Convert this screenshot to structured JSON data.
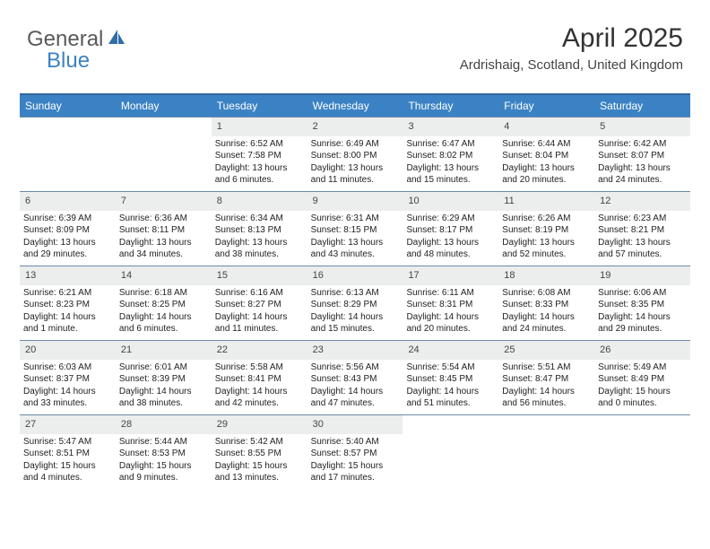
{
  "logo": {
    "text1": "General",
    "text2": "Blue"
  },
  "header": {
    "title": "April 2025",
    "subtitle": "Ardrishaig, Scotland, United Kingdom"
  },
  "colors": {
    "header_bg": "#3b82c4",
    "header_border": "#33689b",
    "row_divider": "#6a8aa8",
    "date_bg": "#eceded"
  },
  "day_names": [
    "Sunday",
    "Monday",
    "Tuesday",
    "Wednesday",
    "Thursday",
    "Friday",
    "Saturday"
  ],
  "weeks": [
    [
      {
        "date": "",
        "lines": []
      },
      {
        "date": "",
        "lines": []
      },
      {
        "date": "1",
        "lines": [
          "Sunrise: 6:52 AM",
          "Sunset: 7:58 PM",
          "Daylight: 13 hours",
          "and 6 minutes."
        ]
      },
      {
        "date": "2",
        "lines": [
          "Sunrise: 6:49 AM",
          "Sunset: 8:00 PM",
          "Daylight: 13 hours",
          "and 11 minutes."
        ]
      },
      {
        "date": "3",
        "lines": [
          "Sunrise: 6:47 AM",
          "Sunset: 8:02 PM",
          "Daylight: 13 hours",
          "and 15 minutes."
        ]
      },
      {
        "date": "4",
        "lines": [
          "Sunrise: 6:44 AM",
          "Sunset: 8:04 PM",
          "Daylight: 13 hours",
          "and 20 minutes."
        ]
      },
      {
        "date": "5",
        "lines": [
          "Sunrise: 6:42 AM",
          "Sunset: 8:07 PM",
          "Daylight: 13 hours",
          "and 24 minutes."
        ]
      }
    ],
    [
      {
        "date": "6",
        "lines": [
          "Sunrise: 6:39 AM",
          "Sunset: 8:09 PM",
          "Daylight: 13 hours",
          "and 29 minutes."
        ]
      },
      {
        "date": "7",
        "lines": [
          "Sunrise: 6:36 AM",
          "Sunset: 8:11 PM",
          "Daylight: 13 hours",
          "and 34 minutes."
        ]
      },
      {
        "date": "8",
        "lines": [
          "Sunrise: 6:34 AM",
          "Sunset: 8:13 PM",
          "Daylight: 13 hours",
          "and 38 minutes."
        ]
      },
      {
        "date": "9",
        "lines": [
          "Sunrise: 6:31 AM",
          "Sunset: 8:15 PM",
          "Daylight: 13 hours",
          "and 43 minutes."
        ]
      },
      {
        "date": "10",
        "lines": [
          "Sunrise: 6:29 AM",
          "Sunset: 8:17 PM",
          "Daylight: 13 hours",
          "and 48 minutes."
        ]
      },
      {
        "date": "11",
        "lines": [
          "Sunrise: 6:26 AM",
          "Sunset: 8:19 PM",
          "Daylight: 13 hours",
          "and 52 minutes."
        ]
      },
      {
        "date": "12",
        "lines": [
          "Sunrise: 6:23 AM",
          "Sunset: 8:21 PM",
          "Daylight: 13 hours",
          "and 57 minutes."
        ]
      }
    ],
    [
      {
        "date": "13",
        "lines": [
          "Sunrise: 6:21 AM",
          "Sunset: 8:23 PM",
          "Daylight: 14 hours",
          "and 1 minute."
        ]
      },
      {
        "date": "14",
        "lines": [
          "Sunrise: 6:18 AM",
          "Sunset: 8:25 PM",
          "Daylight: 14 hours",
          "and 6 minutes."
        ]
      },
      {
        "date": "15",
        "lines": [
          "Sunrise: 6:16 AM",
          "Sunset: 8:27 PM",
          "Daylight: 14 hours",
          "and 11 minutes."
        ]
      },
      {
        "date": "16",
        "lines": [
          "Sunrise: 6:13 AM",
          "Sunset: 8:29 PM",
          "Daylight: 14 hours",
          "and 15 minutes."
        ]
      },
      {
        "date": "17",
        "lines": [
          "Sunrise: 6:11 AM",
          "Sunset: 8:31 PM",
          "Daylight: 14 hours",
          "and 20 minutes."
        ]
      },
      {
        "date": "18",
        "lines": [
          "Sunrise: 6:08 AM",
          "Sunset: 8:33 PM",
          "Daylight: 14 hours",
          "and 24 minutes."
        ]
      },
      {
        "date": "19",
        "lines": [
          "Sunrise: 6:06 AM",
          "Sunset: 8:35 PM",
          "Daylight: 14 hours",
          "and 29 minutes."
        ]
      }
    ],
    [
      {
        "date": "20",
        "lines": [
          "Sunrise: 6:03 AM",
          "Sunset: 8:37 PM",
          "Daylight: 14 hours",
          "and 33 minutes."
        ]
      },
      {
        "date": "21",
        "lines": [
          "Sunrise: 6:01 AM",
          "Sunset: 8:39 PM",
          "Daylight: 14 hours",
          "and 38 minutes."
        ]
      },
      {
        "date": "22",
        "lines": [
          "Sunrise: 5:58 AM",
          "Sunset: 8:41 PM",
          "Daylight: 14 hours",
          "and 42 minutes."
        ]
      },
      {
        "date": "23",
        "lines": [
          "Sunrise: 5:56 AM",
          "Sunset: 8:43 PM",
          "Daylight: 14 hours",
          "and 47 minutes."
        ]
      },
      {
        "date": "24",
        "lines": [
          "Sunrise: 5:54 AM",
          "Sunset: 8:45 PM",
          "Daylight: 14 hours",
          "and 51 minutes."
        ]
      },
      {
        "date": "25",
        "lines": [
          "Sunrise: 5:51 AM",
          "Sunset: 8:47 PM",
          "Daylight: 14 hours",
          "and 56 minutes."
        ]
      },
      {
        "date": "26",
        "lines": [
          "Sunrise: 5:49 AM",
          "Sunset: 8:49 PM",
          "Daylight: 15 hours",
          "and 0 minutes."
        ]
      }
    ],
    [
      {
        "date": "27",
        "lines": [
          "Sunrise: 5:47 AM",
          "Sunset: 8:51 PM",
          "Daylight: 15 hours",
          "and 4 minutes."
        ]
      },
      {
        "date": "28",
        "lines": [
          "Sunrise: 5:44 AM",
          "Sunset: 8:53 PM",
          "Daylight: 15 hours",
          "and 9 minutes."
        ]
      },
      {
        "date": "29",
        "lines": [
          "Sunrise: 5:42 AM",
          "Sunset: 8:55 PM",
          "Daylight: 15 hours",
          "and 13 minutes."
        ]
      },
      {
        "date": "30",
        "lines": [
          "Sunrise: 5:40 AM",
          "Sunset: 8:57 PM",
          "Daylight: 15 hours",
          "and 17 minutes."
        ]
      },
      {
        "date": "",
        "lines": []
      },
      {
        "date": "",
        "lines": []
      },
      {
        "date": "",
        "lines": []
      }
    ]
  ]
}
